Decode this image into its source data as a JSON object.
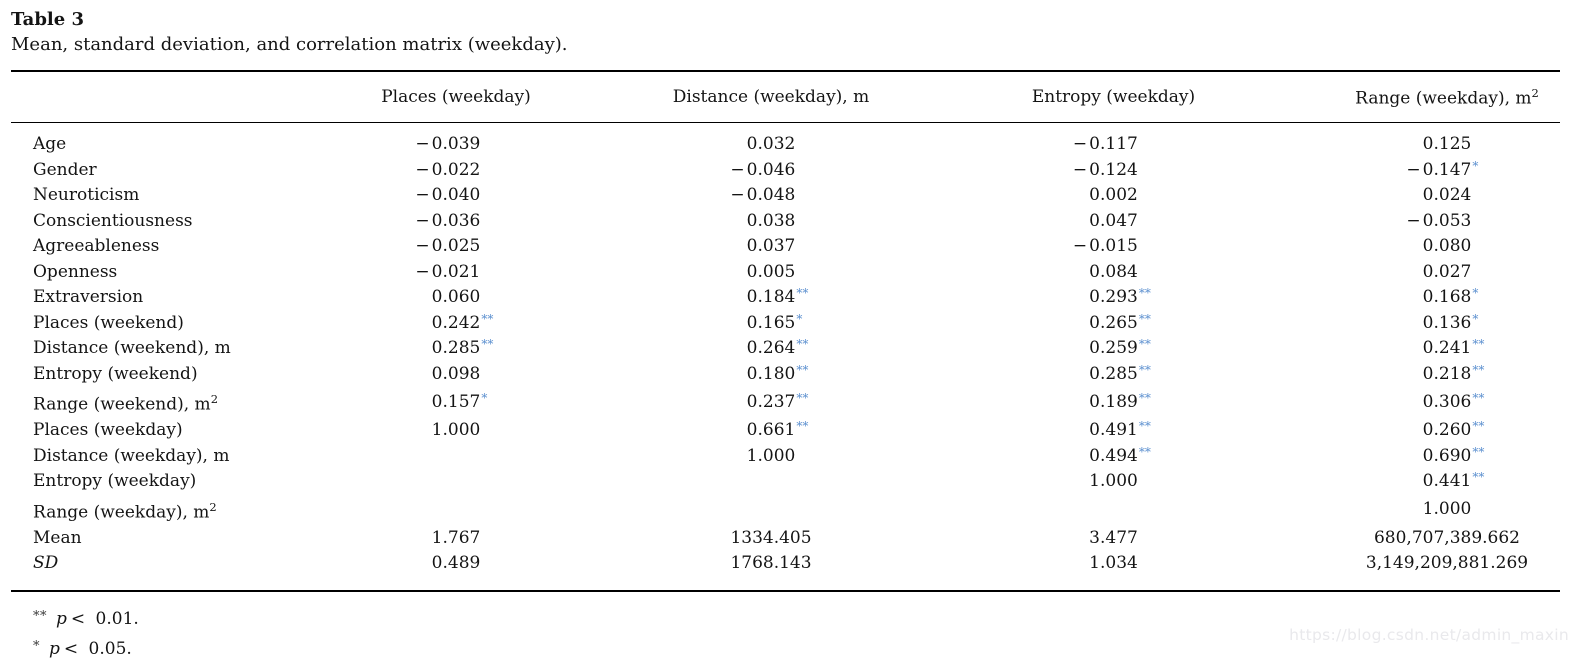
{
  "title": "Table 3",
  "subtitle": "Mean, standard deviation, and correlation matrix (weekday).",
  "chart_data": {
    "type": "table",
    "title": "Mean, standard deviation, and correlation matrix (weekday)."
  },
  "table": {
    "columns": [
      "Places (weekday)",
      "Distance (weekday), m",
      "Entropy (weekday)",
      "Range (weekday), m²"
    ],
    "rows": [
      {
        "label": "Age",
        "values": [
          "-0.039",
          "0.032",
          "-0.117",
          "0.125"
        ]
      },
      {
        "label": "Gender",
        "values": [
          "-0.022",
          "-0.046",
          "-0.124",
          "-0.147*"
        ]
      },
      {
        "label": "Neuroticism",
        "values": [
          "-0.040",
          "-0.048",
          "0.002",
          "0.024"
        ]
      },
      {
        "label": "Conscientiousness",
        "values": [
          "-0.036",
          "0.038",
          "0.047",
          "-0.053"
        ]
      },
      {
        "label": "Agreeableness",
        "values": [
          "-0.025",
          "0.037",
          "-0.015",
          "0.080"
        ]
      },
      {
        "label": "Openness",
        "values": [
          "-0.021",
          "0.005",
          "0.084",
          "0.027"
        ]
      },
      {
        "label": "Extraversion",
        "values": [
          "0.060",
          "0.184**",
          "0.293**",
          "0.168*"
        ]
      },
      {
        "label": "Places (weekend)",
        "values": [
          "0.242**",
          "0.165*",
          "0.265**",
          "0.136*"
        ]
      },
      {
        "label": "Distance (weekend), m",
        "values": [
          "0.285**",
          "0.264**",
          "0.259**",
          "0.241**"
        ]
      },
      {
        "label": "Entropy (weekend)",
        "values": [
          "0.098",
          "0.180**",
          "0.285**",
          "0.218**"
        ]
      },
      {
        "label": "Range (weekend), m²",
        "values": [
          "0.157*",
          "0.237**",
          "0.189**",
          "0.306**"
        ]
      },
      {
        "label": "Places (weekday)",
        "values": [
          "1.000",
          "0.661**",
          "0.491**",
          "0.260**"
        ]
      },
      {
        "label": "Distance (weekday), m",
        "values": [
          "",
          "1.000",
          "0.494**",
          "0.690**"
        ]
      },
      {
        "label": "Entropy (weekday)",
        "values": [
          "",
          "",
          "1.000",
          "0.441**"
        ]
      },
      {
        "label": "Range (weekday), m²",
        "values": [
          "",
          "",
          "",
          "1.000"
        ]
      },
      {
        "label": "Mean",
        "values": [
          "1.767",
          "1334.405",
          "3.477",
          "680,707,389.662"
        ]
      },
      {
        "label": "SD",
        "italic": true,
        "values": [
          "0.489",
          "1768.143",
          "1.034",
          "3,149,209,881.269"
        ]
      }
    ]
  },
  "footnotes": [
    {
      "marker": "**",
      "variable": "p",
      "condition": "< 0.01."
    },
    {
      "marker": "*",
      "variable": "p",
      "condition": "< 0.05."
    }
  ],
  "watermark": "https://blog.csdn.net/admin_maxin",
  "colors": {
    "star": "#5b8fcf",
    "text": "#141414",
    "watermark": "#e9e9ec"
  }
}
